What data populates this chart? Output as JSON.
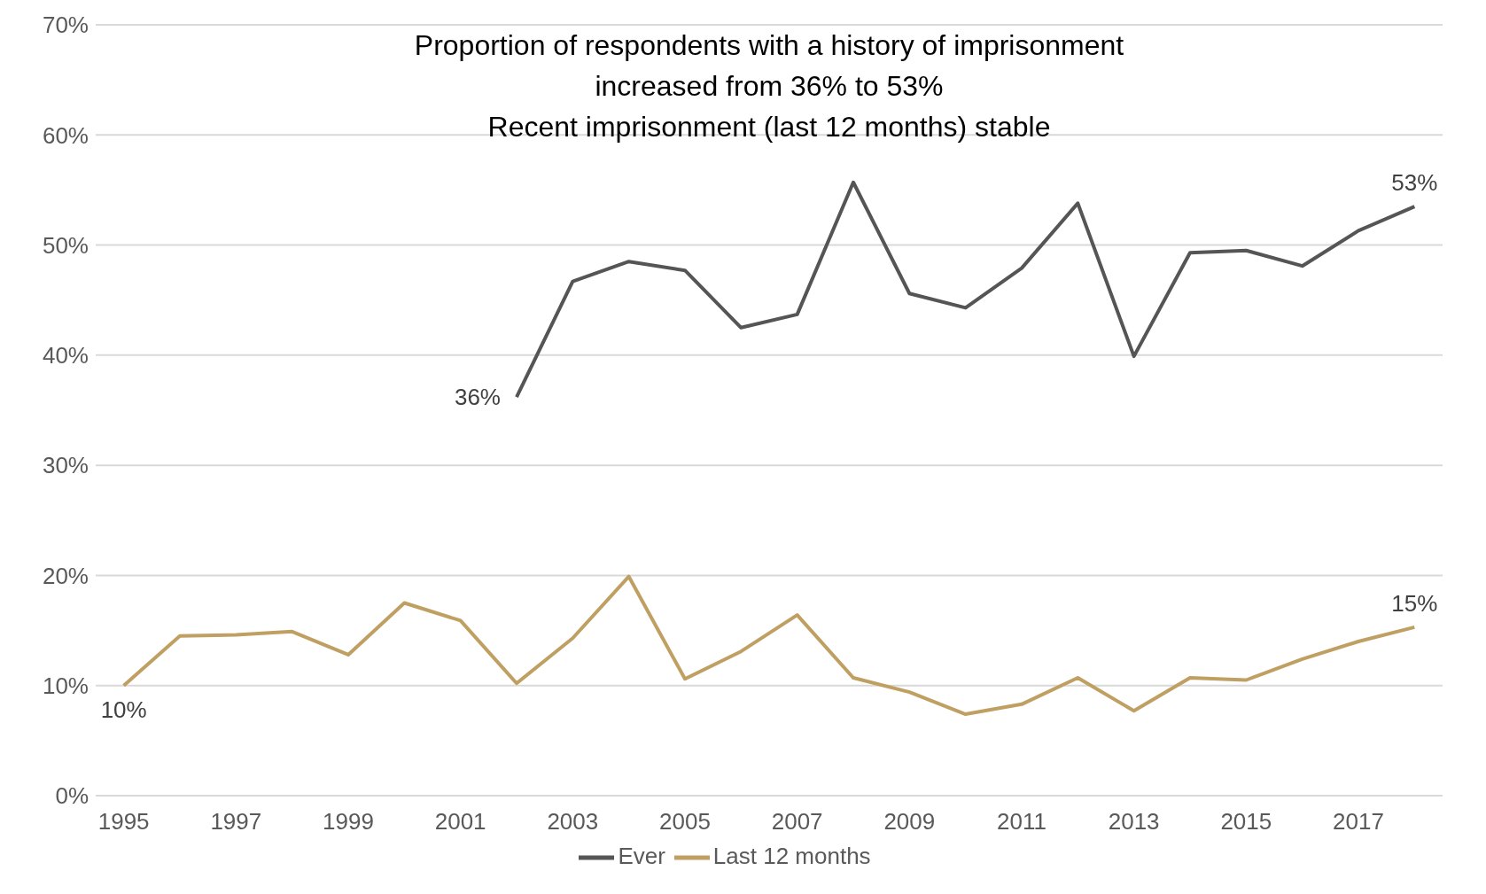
{
  "chart_data": {
    "type": "line",
    "title": "Proportion of respondents with a history of imprisonment\nincreased from 36% to 53%\nRecent imprisonment (last 12 months) stable",
    "x": [
      1995,
      1996,
      1997,
      1998,
      1999,
      2000,
      2001,
      2002,
      2003,
      2004,
      2005,
      2006,
      2007,
      2008,
      2009,
      2010,
      2011,
      2012,
      2013,
      2014,
      2015,
      2016,
      2017,
      2018
    ],
    "series": [
      {
        "name": "Last 12 months",
        "color": "#bfa062",
        "values": [
          10,
          14.5,
          14.6,
          14.9,
          12.8,
          17.5,
          15.9,
          10.2,
          14.3,
          19.9,
          10.6,
          13.1,
          16.4,
          10.7,
          9.4,
          7.4,
          8.3,
          10.7,
          7.7,
          10.7,
          10.5,
          12.4,
          14.0,
          15.3
        ]
      },
      {
        "name": "Ever",
        "color": "#555555",
        "values": [
          null,
          null,
          null,
          null,
          null,
          null,
          null,
          36.2,
          46.7,
          48.5,
          47.7,
          42.5,
          43.7,
          55.7,
          45.6,
          44.3,
          47.9,
          53.8,
          39.9,
          49.3,
          49.5,
          48.1,
          51.3,
          53.5
        ]
      }
    ],
    "xlim": [
      1994.5,
      2018.5
    ],
    "xticks": [
      1995,
      1997,
      1999,
      2001,
      2003,
      2005,
      2007,
      2009,
      2011,
      2013,
      2015,
      2017
    ],
    "ylim": [
      0,
      70
    ],
    "yticks": [
      {
        "value": 0,
        "label": "0%"
      },
      {
        "value": 10,
        "label": "10%"
      },
      {
        "value": 20,
        "label": "20%"
      },
      {
        "value": 30,
        "label": "30%"
      },
      {
        "value": 40,
        "label": "40%"
      },
      {
        "value": 50,
        "label": "50%"
      },
      {
        "value": 60,
        "label": "60%"
      },
      {
        "value": 70,
        "label": "70%"
      }
    ],
    "annotations": [
      {
        "text": "10%",
        "x": 1995,
        "y": 10
      },
      {
        "text": "36%",
        "x": 2002,
        "y": 36.2
      },
      {
        "text": "53%",
        "x": 2018,
        "y": 53.5
      },
      {
        "text": "15%",
        "x": 2018,
        "y": 15.3
      }
    ],
    "grid": "y",
    "legend": "bottom",
    "marker": "none",
    "line_style": "solid"
  }
}
